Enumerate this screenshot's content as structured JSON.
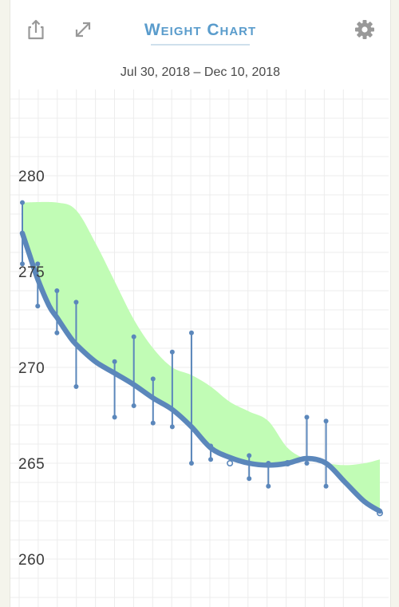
{
  "header": {
    "title": "Weight Chart",
    "date_range": "Jul 30, 2018 – Dec 10, 2018"
  },
  "icons": {
    "share": "share-icon",
    "expand": "expand-icon",
    "settings": "gear-icon"
  },
  "colors": {
    "accent": "#5a9ccc",
    "trend_line": "#5b87bb",
    "band_fill": "#c1fcb5",
    "grid": "#ececec",
    "axis_text": "#3a3a3a"
  },
  "chart_data": {
    "type": "line",
    "title": "",
    "xlabel": "",
    "ylabel": "",
    "x_start": "Jul 30, 2018",
    "x_end": "Dec 10, 2018",
    "ylim": [
      257.5,
      284.5
    ],
    "y_ticks": [
      260,
      265,
      270,
      275,
      280
    ],
    "grid": true,
    "series": [
      {
        "kind": "daily_range",
        "values": [
          {
            "day": 1,
            "low": 275.4,
            "high": 278.6
          },
          {
            "day": 5,
            "low": 273.2,
            "high": 275.4
          },
          {
            "day": 10,
            "low": 271.8,
            "high": 274.0
          },
          {
            "day": 15,
            "low": 269.0,
            "high": 273.4
          },
          {
            "day": 25,
            "low": 267.4,
            "high": 270.3
          },
          {
            "day": 30,
            "low": 268.0,
            "high": 271.6
          },
          {
            "day": 35,
            "low": 267.1,
            "high": 269.4
          },
          {
            "day": 40,
            "low": 266.9,
            "high": 270.8
          },
          {
            "day": 45,
            "low": 265.0,
            "high": 271.8
          },
          {
            "day": 50,
            "low": 265.2,
            "high": 265.9
          },
          {
            "day": 55,
            "low": 265.0,
            "high": 265.0
          },
          {
            "day": 60,
            "low": 264.2,
            "high": 265.4
          },
          {
            "day": 65,
            "low": 263.8,
            "high": 265.0
          },
          {
            "day": 70,
            "low": 265.0,
            "high": 265.0
          },
          {
            "day": 75,
            "low": 265.0,
            "high": 267.4
          },
          {
            "day": 80,
            "low": 263.8,
            "high": 267.2
          },
          {
            "day": 94,
            "low": 262.4,
            "high": 262.4
          }
        ]
      },
      {
        "kind": "trend",
        "values": [
          {
            "day": 1,
            "y": 277.0
          },
          {
            "day": 3,
            "y": 275.8
          },
          {
            "day": 5,
            "y": 274.6
          },
          {
            "day": 8,
            "y": 273.2
          },
          {
            "day": 10,
            "y": 272.6
          },
          {
            "day": 13,
            "y": 271.7
          },
          {
            "day": 15,
            "y": 271.2
          },
          {
            "day": 20,
            "y": 270.3
          },
          {
            "day": 25,
            "y": 269.7
          },
          {
            "day": 30,
            "y": 269.1
          },
          {
            "day": 35,
            "y": 268.4
          },
          {
            "day": 40,
            "y": 267.8
          },
          {
            "day": 45,
            "y": 266.9
          },
          {
            "day": 50,
            "y": 265.8
          },
          {
            "day": 55,
            "y": 265.3
          },
          {
            "day": 60,
            "y": 265.0
          },
          {
            "day": 65,
            "y": 264.9
          },
          {
            "day": 70,
            "y": 265.0
          },
          {
            "day": 75,
            "y": 265.25
          },
          {
            "day": 80,
            "y": 265.0
          },
          {
            "day": 85,
            "y": 264.0
          },
          {
            "day": 90,
            "y": 263.0
          },
          {
            "day": 94,
            "y": 262.5
          }
        ]
      },
      {
        "kind": "band_upper",
        "values": [
          {
            "day": 1,
            "y": 278.6
          },
          {
            "day": 10,
            "y": 278.6
          },
          {
            "day": 15,
            "y": 278.2
          },
          {
            "day": 20,
            "y": 276.5
          },
          {
            "day": 25,
            "y": 274.5
          },
          {
            "day": 30,
            "y": 272.5
          },
          {
            "day": 35,
            "y": 271.0
          },
          {
            "day": 40,
            "y": 270.0
          },
          {
            "day": 45,
            "y": 269.6
          },
          {
            "day": 50,
            "y": 269.0
          },
          {
            "day": 55,
            "y": 268.2
          },
          {
            "day": 60,
            "y": 267.7
          },
          {
            "day": 65,
            "y": 267.2
          },
          {
            "day": 70,
            "y": 265.8
          },
          {
            "day": 75,
            "y": 265.2
          },
          {
            "day": 80,
            "y": 265.0
          },
          {
            "day": 85,
            "y": 264.9
          },
          {
            "day": 90,
            "y": 265.0
          },
          {
            "day": 94,
            "y": 265.2
          }
        ]
      }
    ]
  }
}
